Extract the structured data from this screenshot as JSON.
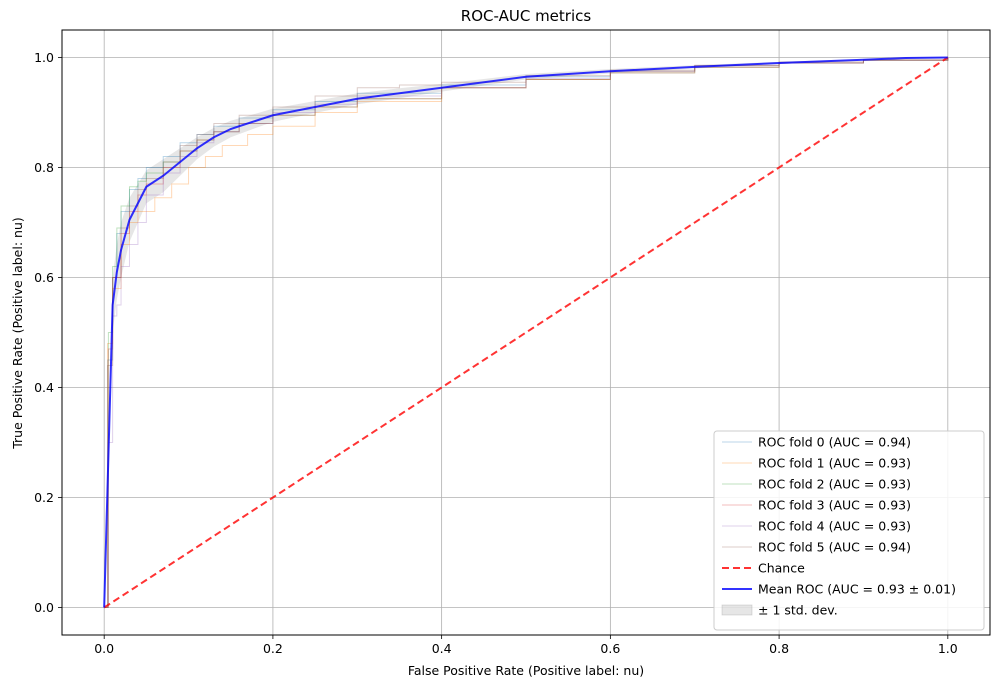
{
  "chart_data": {
    "type": "line",
    "title": "ROC-AUC metrics",
    "xlabel": "False Positive Rate (Positive label: nu)",
    "ylabel": "True Positive Rate (Positive label: nu)",
    "xlim": [
      -0.05,
      1.05
    ],
    "ylim": [
      -0.05,
      1.05
    ],
    "xticks": [
      "0.0",
      "0.2",
      "0.4",
      "0.6",
      "0.8",
      "1.0"
    ],
    "yticks": [
      "0.0",
      "0.2",
      "0.4",
      "0.6",
      "0.8",
      "1.0"
    ],
    "tick_values": [
      0,
      0.2,
      0.4,
      0.6,
      0.8,
      1.0
    ],
    "grid": true,
    "legend_position": "bottom-right",
    "series": [
      {
        "name": "ROC fold 0 (AUC = 0.94)",
        "color": "#1f77b4",
        "style": "fold",
        "x": [
          0,
          0.004,
          0.01,
          0.015,
          0.02,
          0.03,
          0.04,
          0.05,
          0.07,
          0.09,
          0.11,
          0.13,
          0.16,
          0.2,
          0.25,
          0.3,
          0.4,
          0.5,
          0.6,
          0.7,
          0.8,
          0.9,
          1.0
        ],
        "y": [
          0,
          0.45,
          0.6,
          0.68,
          0.72,
          0.76,
          0.78,
          0.8,
          0.82,
          0.845,
          0.86,
          0.875,
          0.89,
          0.905,
          0.92,
          0.935,
          0.95,
          0.965,
          0.975,
          0.985,
          0.99,
          0.995,
          1.0
        ]
      },
      {
        "name": "ROC fold 1 (AUC = 0.93)",
        "color": "#ff7f0e",
        "style": "fold",
        "x": [
          0,
          0.004,
          0.01,
          0.02,
          0.03,
          0.04,
          0.06,
          0.08,
          0.1,
          0.12,
          0.14,
          0.17,
          0.2,
          0.25,
          0.3,
          0.4,
          0.5,
          0.6,
          0.7,
          0.8,
          0.9,
          1.0
        ],
        "y": [
          0,
          0.48,
          0.58,
          0.66,
          0.7,
          0.72,
          0.745,
          0.77,
          0.8,
          0.82,
          0.84,
          0.86,
          0.875,
          0.9,
          0.92,
          0.945,
          0.96,
          0.975,
          0.985,
          0.99,
          0.995,
          1.0
        ]
      },
      {
        "name": "ROC fold 2 (AUC = 0.93)",
        "color": "#2ca02c",
        "style": "fold",
        "x": [
          0,
          0.005,
          0.01,
          0.015,
          0.02,
          0.03,
          0.04,
          0.05,
          0.07,
          0.09,
          0.11,
          0.13,
          0.16,
          0.2,
          0.25,
          0.3,
          0.4,
          0.5,
          0.6,
          0.7,
          0.8,
          0.9,
          1.0
        ],
        "y": [
          0,
          0.5,
          0.62,
          0.69,
          0.73,
          0.765,
          0.775,
          0.79,
          0.81,
          0.83,
          0.85,
          0.865,
          0.88,
          0.895,
          0.91,
          0.925,
          0.945,
          0.96,
          0.972,
          0.982,
          0.99,
          0.995,
          1.0
        ]
      },
      {
        "name": "ROC fold 3 (AUC = 0.93)",
        "color": "#d62728",
        "style": "fold",
        "x": [
          0,
          0.005,
          0.01,
          0.02,
          0.03,
          0.04,
          0.05,
          0.07,
          0.09,
          0.11,
          0.13,
          0.16,
          0.2,
          0.25,
          0.3,
          0.4,
          0.5,
          0.6,
          0.7,
          0.8,
          0.9,
          1.0
        ],
        "y": [
          0,
          0.47,
          0.6,
          0.68,
          0.72,
          0.75,
          0.77,
          0.8,
          0.83,
          0.85,
          0.865,
          0.88,
          0.895,
          0.91,
          0.925,
          0.945,
          0.96,
          0.972,
          0.982,
          0.99,
          0.995,
          1.0
        ]
      },
      {
        "name": "ROC fold 4 (AUC = 0.93)",
        "color": "#9467bd",
        "style": "fold",
        "x": [
          0,
          0.005,
          0.01,
          0.015,
          0.02,
          0.03,
          0.04,
          0.05,
          0.07,
          0.09,
          0.11,
          0.13,
          0.16,
          0.2,
          0.25,
          0.3,
          0.4,
          0.5,
          0.6,
          0.7,
          0.8,
          0.9,
          1.0
        ],
        "y": [
          0,
          0.3,
          0.53,
          0.55,
          0.62,
          0.66,
          0.7,
          0.75,
          0.79,
          0.82,
          0.845,
          0.865,
          0.88,
          0.9,
          0.915,
          0.93,
          0.945,
          0.962,
          0.975,
          0.985,
          0.99,
          0.995,
          1.0
        ]
      },
      {
        "name": "ROC fold 5 (AUC = 0.94)",
        "color": "#8c564b",
        "style": "fold",
        "x": [
          0,
          0.004,
          0.01,
          0.02,
          0.03,
          0.04,
          0.05,
          0.07,
          0.09,
          0.11,
          0.13,
          0.16,
          0.2,
          0.25,
          0.3,
          0.35,
          0.4,
          0.5,
          0.6,
          0.7,
          0.8,
          0.9,
          1.0
        ],
        "y": [
          0,
          0.44,
          0.6,
          0.69,
          0.73,
          0.76,
          0.78,
          0.81,
          0.84,
          0.86,
          0.88,
          0.895,
          0.91,
          0.93,
          0.945,
          0.95,
          0.955,
          0.967,
          0.977,
          0.986,
          0.992,
          0.996,
          1.0
        ]
      },
      {
        "name": "Chance",
        "color": "#ff0000",
        "style": "dashed",
        "x": [
          0,
          1
        ],
        "y": [
          0,
          1
        ]
      },
      {
        "name": "Mean ROC (AUC = 0.93 ± 0.01)",
        "color": "#0000ff",
        "style": "mean",
        "x": [
          0,
          0.01,
          0.015,
          0.02,
          0.03,
          0.04,
          0.05,
          0.07,
          0.09,
          0.11,
          0.13,
          0.15,
          0.18,
          0.2,
          0.25,
          0.3,
          0.35,
          0.4,
          0.45,
          0.5,
          0.6,
          0.7,
          0.8,
          0.9,
          0.95,
          1.0
        ],
        "y": [
          0,
          0.55,
          0.61,
          0.65,
          0.705,
          0.735,
          0.765,
          0.785,
          0.81,
          0.835,
          0.855,
          0.87,
          0.885,
          0.895,
          0.91,
          0.925,
          0.935,
          0.945,
          0.955,
          0.965,
          0.975,
          0.983,
          0.99,
          0.996,
          0.999,
          1.0
        ]
      }
    ],
    "std_band": {
      "name": "± 1 std. dev.",
      "color": "#808080",
      "x": [
        0,
        0.01,
        0.015,
        0.02,
        0.03,
        0.04,
        0.05,
        0.07,
        0.09,
        0.11,
        0.13,
        0.15,
        0.18,
        0.2,
        0.25,
        0.3,
        0.35,
        0.4,
        0.45,
        0.5,
        0.6,
        0.7,
        0.8,
        0.9,
        0.95,
        1.0
      ],
      "upper": [
        0,
        0.6,
        0.66,
        0.7,
        0.745,
        0.77,
        0.795,
        0.815,
        0.835,
        0.855,
        0.872,
        0.885,
        0.898,
        0.907,
        0.921,
        0.935,
        0.944,
        0.952,
        0.961,
        0.97,
        0.979,
        0.986,
        0.992,
        0.997,
        1.0,
        1.0
      ],
      "lower": [
        0,
        0.5,
        0.56,
        0.6,
        0.665,
        0.7,
        0.735,
        0.755,
        0.785,
        0.815,
        0.838,
        0.855,
        0.872,
        0.883,
        0.899,
        0.915,
        0.926,
        0.938,
        0.949,
        0.96,
        0.971,
        0.98,
        0.988,
        0.995,
        0.998,
        1.0
      ]
    }
  }
}
